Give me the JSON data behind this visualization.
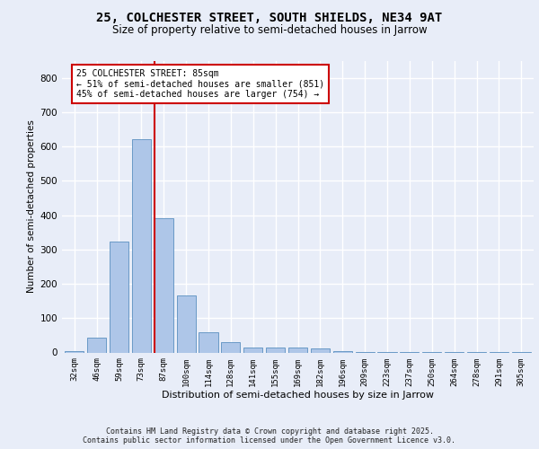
{
  "title_line1": "25, COLCHESTER STREET, SOUTH SHIELDS, NE34 9AT",
  "title_line2": "Size of property relative to semi-detached houses in Jarrow",
  "xlabel": "Distribution of semi-detached houses by size in Jarrow",
  "ylabel": "Number of semi-detached properties",
  "categories": [
    "32sqm",
    "46sqm",
    "59sqm",
    "73sqm",
    "87sqm",
    "100sqm",
    "114sqm",
    "128sqm",
    "141sqm",
    "155sqm",
    "169sqm",
    "182sqm",
    "196sqm",
    "209sqm",
    "223sqm",
    "237sqm",
    "250sqm",
    "264sqm",
    "278sqm",
    "291sqm",
    "305sqm"
  ],
  "values": [
    5,
    42,
    322,
    621,
    390,
    165,
    60,
    29,
    15,
    15,
    15,
    12,
    3,
    2,
    1,
    1,
    1,
    1,
    1,
    1,
    1
  ],
  "bar_color": "#aec6e8",
  "bar_edge_color": "#5a8fc0",
  "highlight_index": 4,
  "highlight_line_color": "#cc0000",
  "annotation_text": "25 COLCHESTER STREET: 85sqm\n← 51% of semi-detached houses are smaller (851)\n45% of semi-detached houses are larger (754) →",
  "annotation_box_color": "#ffffff",
  "annotation_box_edge_color": "#cc0000",
  "ylim": [
    0,
    850
  ],
  "yticks": [
    0,
    100,
    200,
    300,
    400,
    500,
    600,
    700,
    800
  ],
  "background_color": "#e8edf8",
  "grid_color": "#ffffff",
  "footer_line1": "Contains HM Land Registry data © Crown copyright and database right 2025.",
  "footer_line2": "Contains public sector information licensed under the Open Government Licence v3.0."
}
